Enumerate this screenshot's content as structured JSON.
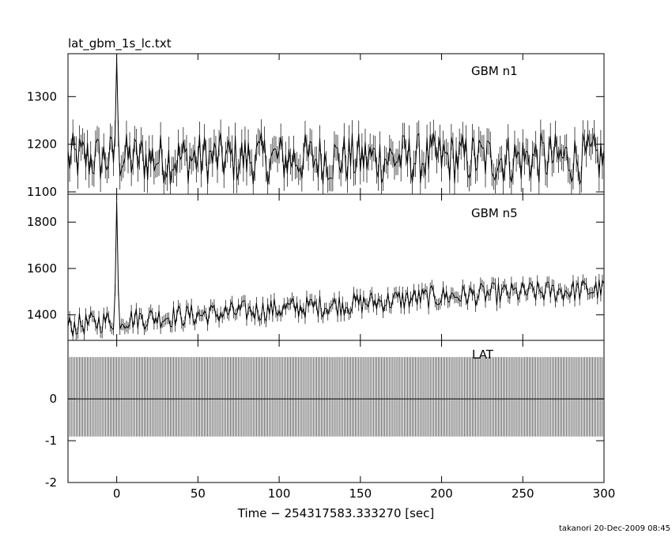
{
  "file_title": "lat_gbm_1s_lc.txt",
  "xlabel": "Time − 254317583.333270 [sec]",
  "footer": "takanori 20-Dec-2009 08:45",
  "chart_data": [
    {
      "type": "line",
      "panel": "GBM n1",
      "label": "GBM n1",
      "xlim": [
        -30,
        300
      ],
      "ylim": [
        1095,
        1390
      ],
      "yticks": [
        1100,
        1200,
        1300
      ],
      "xticks": [
        0,
        50,
        100,
        150,
        200,
        250,
        300
      ],
      "series": [
        {
          "x_start": -30,
          "x_end": 300,
          "step": 1,
          "baseline": 1170,
          "noise_amplitude": 55,
          "peak": {
            "x": 0,
            "y": 1380
          }
        }
      ]
    },
    {
      "type": "line",
      "panel": "GBM n5",
      "label": "GBM n5",
      "xlim": [
        -30,
        300
      ],
      "ylim": [
        1290,
        1920
      ],
      "yticks": [
        1400,
        1600,
        1800
      ],
      "xticks": [
        0,
        50,
        100,
        150,
        200,
        250,
        300
      ],
      "series": [
        {
          "x_start": -30,
          "x_end": 300,
          "step": 1,
          "trend": [
            [
              -30,
              1350
            ],
            [
              0,
              1380
            ],
            [
              50,
              1400
            ],
            [
              150,
              1450
            ],
            [
              200,
              1480
            ],
            [
              300,
              1510
            ]
          ],
          "noise_amplitude": 50,
          "peak": {
            "x": 0,
            "y": 1890
          }
        }
      ]
    },
    {
      "type": "line",
      "panel": "LAT",
      "label": "LAT",
      "xlim": [
        -30,
        300
      ],
      "ylim": [
        -2,
        1.4
      ],
      "yticks": [
        -2,
        -1,
        0
      ],
      "xticks": [
        0,
        50,
        100,
        150,
        200,
        250,
        300
      ],
      "series": [
        {
          "x_start": -30,
          "x_end": 300,
          "step": 1,
          "values": "all 0",
          "error_bar": {
            "low": -0.9,
            "high": 1.0
          }
        }
      ]
    }
  ]
}
